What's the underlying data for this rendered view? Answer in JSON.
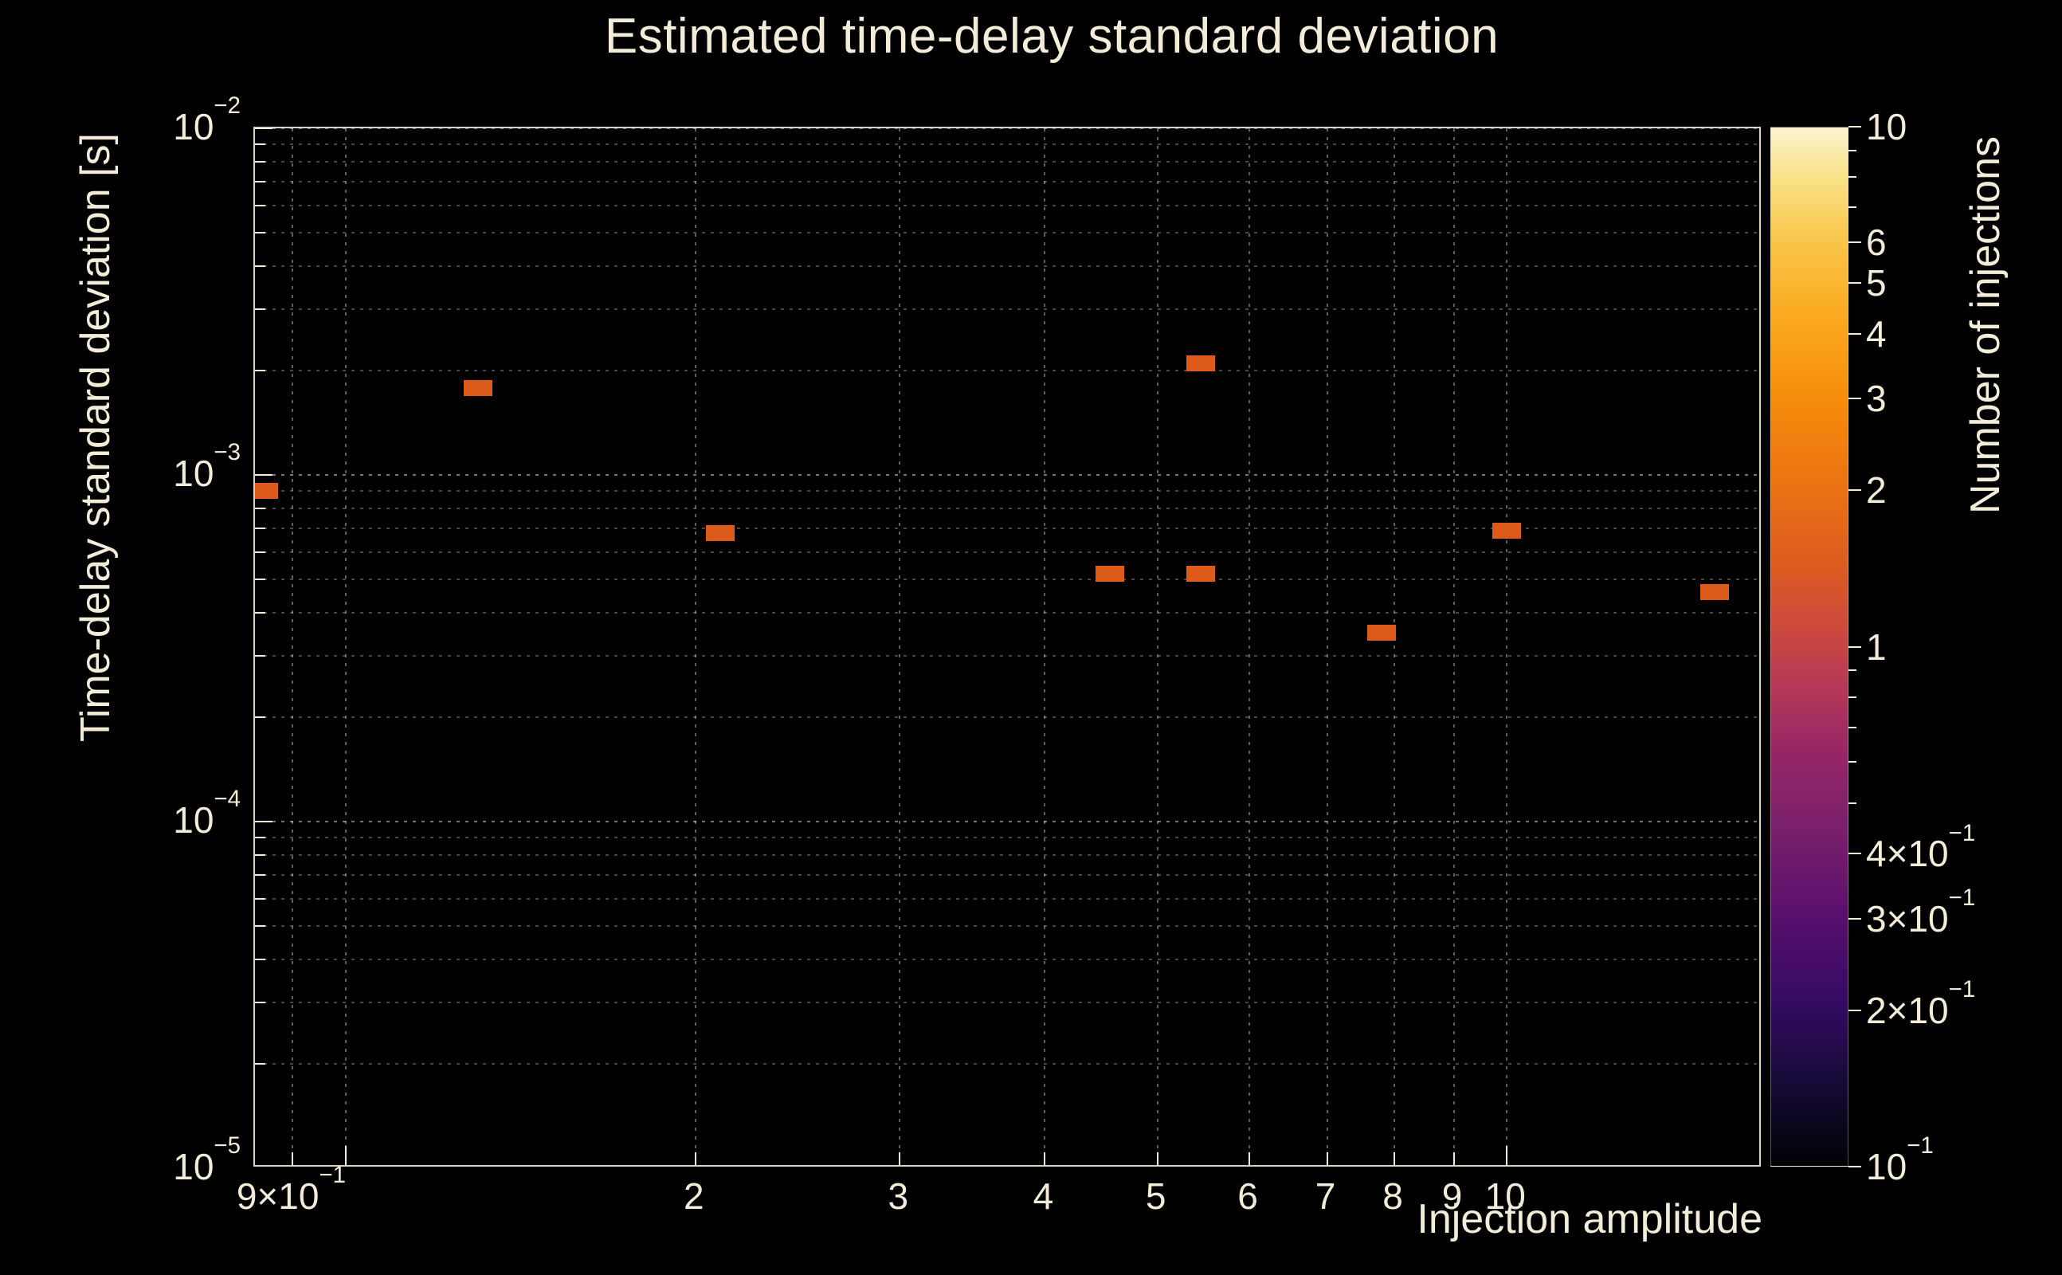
{
  "colors": {
    "background": "#000000",
    "text": "#f2ecd8",
    "grid": "#f2ecd8",
    "frame": "#f2ecd8",
    "marker": "#dc5b1b"
  },
  "chart_data": {
    "type": "heatmap",
    "title": "Estimated time-delay standard deviation",
    "xlabel": "Injection amplitude",
    "ylabel": "Time-delay standard deviation [s]",
    "zlabel": "Number of injections",
    "x_scale": "log",
    "y_scale": "log",
    "z_scale": "log",
    "grid": true,
    "colorbar_position": "right",
    "xlim": [
      0.835,
      16.6
    ],
    "ylim": [
      1e-05,
      0.01
    ],
    "zlim": [
      0.1,
      10
    ],
    "points": [
      {
        "x": 0.85,
        "y": 0.0009,
        "count": 1
      },
      {
        "x": 1.3,
        "y": 0.00178,
        "count": 1
      },
      {
        "x": 2.1,
        "y": 0.00068,
        "count": 1
      },
      {
        "x": 4.55,
        "y": 0.00052,
        "count": 1
      },
      {
        "x": 5.45,
        "y": 0.0021,
        "count": 1
      },
      {
        "x": 5.45,
        "y": 0.00052,
        "count": 1
      },
      {
        "x": 7.8,
        "y": 0.00035,
        "count": 1
      },
      {
        "x": 10.0,
        "y": 0.00069,
        "count": 1
      },
      {
        "x": 15.1,
        "y": 0.00046,
        "count": 1
      }
    ],
    "x_ticks": [
      {
        "v": 0.9,
        "base": "9×10",
        "sup": "−1"
      },
      {
        "v": 1
      },
      {
        "v": 2,
        "base": "2"
      },
      {
        "v": 3,
        "base": "3"
      },
      {
        "v": 4,
        "base": "4"
      },
      {
        "v": 5,
        "base": "5"
      },
      {
        "v": 6,
        "base": "6"
      },
      {
        "v": 7,
        "base": "7"
      },
      {
        "v": 8,
        "base": "8"
      },
      {
        "v": 9,
        "base": "9"
      },
      {
        "v": 10,
        "base": "10"
      }
    ],
    "y_ticks": [
      {
        "v": 0.01,
        "base": "10",
        "sup": "−2",
        "major": true
      },
      {
        "v": 0.009
      },
      {
        "v": 0.008
      },
      {
        "v": 0.007
      },
      {
        "v": 0.006
      },
      {
        "v": 0.005
      },
      {
        "v": 0.004
      },
      {
        "v": 0.003
      },
      {
        "v": 0.002
      },
      {
        "v": 0.001,
        "base": "10",
        "sup": "−3",
        "major": true
      },
      {
        "v": 0.0009
      },
      {
        "v": 0.0008
      },
      {
        "v": 0.0007
      },
      {
        "v": 0.0006
      },
      {
        "v": 0.0005
      },
      {
        "v": 0.0004
      },
      {
        "v": 0.0003
      },
      {
        "v": 0.0002
      },
      {
        "v": 0.0001,
        "base": "10",
        "sup": "−4",
        "major": true
      },
      {
        "v": 9e-05
      },
      {
        "v": 8e-05
      },
      {
        "v": 7e-05
      },
      {
        "v": 6e-05
      },
      {
        "v": 5e-05
      },
      {
        "v": 4e-05
      },
      {
        "v": 3e-05
      },
      {
        "v": 2e-05
      },
      {
        "v": 1e-05,
        "base": "10",
        "sup": "−5",
        "major": true
      }
    ],
    "z_ticks": [
      {
        "v": 10,
        "base": "10",
        "major": true
      },
      {
        "v": 9
      },
      {
        "v": 8
      },
      {
        "v": 7
      },
      {
        "v": 6,
        "base": "6"
      },
      {
        "v": 5,
        "base": "5"
      },
      {
        "v": 4,
        "base": "4"
      },
      {
        "v": 3,
        "base": "3"
      },
      {
        "v": 2,
        "base": "2"
      },
      {
        "v": 1,
        "base": "1",
        "major": true
      },
      {
        "v": 0.9
      },
      {
        "v": 0.8
      },
      {
        "v": 0.7
      },
      {
        "v": 0.6
      },
      {
        "v": 0.5
      },
      {
        "v": 0.4,
        "base": "4×10",
        "sup": "−1"
      },
      {
        "v": 0.3,
        "base": "3×10",
        "sup": "−1"
      },
      {
        "v": 0.2,
        "base": "2×10",
        "sup": "−1"
      },
      {
        "v": 0.1,
        "base": "10",
        "sup": "−1",
        "major": true
      }
    ],
    "colorbar_stops": [
      {
        "p": 0,
        "c": "#030104"
      },
      {
        "p": 8,
        "c": "#150b37"
      },
      {
        "p": 16,
        "c": "#360b63"
      },
      {
        "p": 24,
        "c": "#590f6d"
      },
      {
        "p": 32,
        "c": "#781f6c"
      },
      {
        "p": 40,
        "c": "#972766"
      },
      {
        "p": 46,
        "c": "#b43857"
      },
      {
        "p": 52,
        "c": "#cd4a3d"
      },
      {
        "p": 58,
        "c": "#dd5c1f"
      },
      {
        "p": 66,
        "c": "#eb7413"
      },
      {
        "p": 74,
        "c": "#f68d0b"
      },
      {
        "p": 82,
        "c": "#fbaa20"
      },
      {
        "p": 89,
        "c": "#f9c54a"
      },
      {
        "p": 95,
        "c": "#f9e185"
      },
      {
        "p": 100,
        "c": "#fbf4d0"
      }
    ]
  }
}
